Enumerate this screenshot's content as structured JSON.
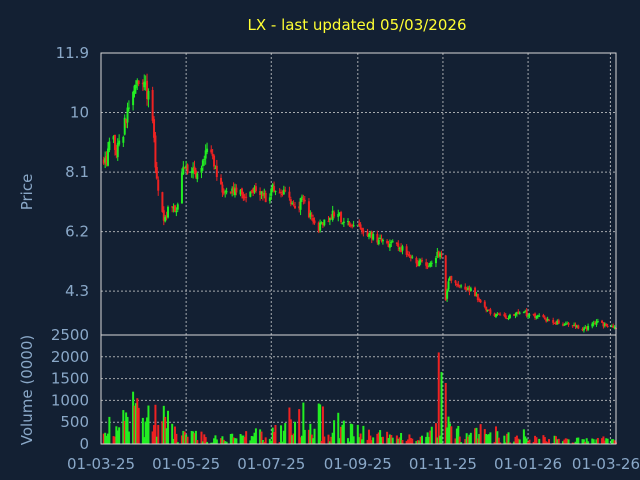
{
  "chart_data": {
    "type": "candlestick",
    "title": "LX - last updated 05/03/2026",
    "colors": {
      "background": "#132033",
      "up": "#22ee22",
      "down": "#ee2222",
      "grid": "#d8d8d8",
      "axis_text": "#8aa8c8",
      "title": "#ffff33"
    },
    "grid": true,
    "price_panel": {
      "ylabel": "Price",
      "ylim": [
        2.9,
        11.9
      ],
      "tick_labels": [
        "11.9",
        "10",
        "8.1",
        "6.2",
        "4.3"
      ],
      "tick_values": [
        11.9,
        10,
        8.1,
        6.2,
        4.3
      ]
    },
    "volume_panel": {
      "ylabel": "Volume (0000)",
      "ylim": [
        0,
        2500
      ],
      "tick_labels": [
        "2500",
        "2000",
        "1500",
        "1000",
        "500",
        "0"
      ],
      "tick_values": [
        2500,
        2000,
        1500,
        1000,
        500,
        0
      ]
    },
    "x_tick_labels": [
      "01-03-25",
      "01-05-25",
      "01-07-25",
      "01-09-25",
      "01-11-25",
      "01-01-26",
      "01-03-26"
    ],
    "x_tick_dates": [
      "2025-03-01",
      "2025-05-01",
      "2025-07-01",
      "2025-09-01",
      "2025-11-01",
      "2026-01-01",
      "2026-03-01"
    ],
    "x_range": [
      "2025-03-01",
      "2026-03-05"
    ],
    "price_path": [
      [
        "2025-03-01",
        8.4
      ],
      [
        "2025-03-05",
        8.5
      ],
      [
        "2025-03-08",
        9.3
      ],
      [
        "2025-03-12",
        8.8
      ],
      [
        "2025-03-16",
        9.2
      ],
      [
        "2025-03-20",
        10.1
      ],
      [
        "2025-03-24",
        10.5
      ],
      [
        "2025-03-28",
        11.1
      ],
      [
        "2025-04-02",
        10.8
      ],
      [
        "2025-04-06",
        10.2
      ],
      [
        "2025-04-09",
        8.4
      ],
      [
        "2025-04-12",
        7.2
      ],
      [
        "2025-04-15",
        6.6
      ],
      [
        "2025-04-19",
        7.0
      ],
      [
        "2025-04-24",
        6.8
      ],
      [
        "2025-04-28",
        8.1
      ],
      [
        "2025-05-03",
        8.2
      ],
      [
        "2025-05-08",
        8.0
      ],
      [
        "2025-05-14",
        8.5
      ],
      [
        "2025-05-18",
        8.9
      ],
      [
        "2025-05-22",
        8.2
      ],
      [
        "2025-05-27",
        7.6
      ],
      [
        "2025-06-02",
        7.4
      ],
      [
        "2025-06-08",
        7.5
      ],
      [
        "2025-06-15",
        7.3
      ],
      [
        "2025-06-22",
        7.6
      ],
      [
        "2025-06-28",
        7.2
      ],
      [
        "2025-07-02",
        7.6
      ],
      [
        "2025-07-06",
        7.4
      ],
      [
        "2025-07-12",
        7.4
      ],
      [
        "2025-07-18",
        6.9
      ],
      [
        "2025-07-24",
        7.3
      ],
      [
        "2025-07-28",
        6.8
      ],
      [
        "2025-08-03",
        6.3
      ],
      [
        "2025-08-09",
        6.5
      ],
      [
        "2025-08-15",
        6.8
      ],
      [
        "2025-08-21",
        6.6
      ],
      [
        "2025-08-27",
        6.4
      ],
      [
        "2025-09-05",
        6.2
      ],
      [
        "2025-09-14",
        6.0
      ],
      [
        "2025-09-24",
        5.8
      ],
      [
        "2025-10-04",
        5.6
      ],
      [
        "2025-10-14",
        5.2
      ],
      [
        "2025-10-24",
        5.1
      ],
      [
        "2025-10-30",
        5.6
      ],
      [
        "2025-11-01",
        5.3
      ],
      [
        "2025-11-03",
        4.1
      ],
      [
        "2025-11-05",
        4.7
      ],
      [
        "2025-11-15",
        4.4
      ],
      [
        "2025-11-22",
        4.3
      ],
      [
        "2025-11-26",
        4.1
      ],
      [
        "2025-12-01",
        3.8
      ],
      [
        "2025-12-08",
        3.5
      ],
      [
        "2025-12-18",
        3.5
      ],
      [
        "2025-12-28",
        3.6
      ],
      [
        "2026-01-08",
        3.5
      ],
      [
        "2026-01-20",
        3.3
      ],
      [
        "2026-02-01",
        3.2
      ],
      [
        "2026-02-10",
        3.1
      ],
      [
        "2026-02-20",
        3.3
      ],
      [
        "2026-03-05",
        3.1
      ]
    ],
    "volume_path": [
      [
        "2025-03-01",
        250
      ],
      [
        "2025-03-25",
        700
      ],
      [
        "2025-04-10",
        500
      ],
      [
        "2025-05-01",
        200
      ],
      [
        "2025-06-01",
        180
      ],
      [
        "2025-07-01",
        250
      ],
      [
        "2025-07-25",
        450
      ],
      [
        "2025-08-15",
        350
      ],
      [
        "2025-09-15",
        220
      ],
      [
        "2025-10-15",
        170
      ],
      [
        "2025-10-31",
        350
      ],
      [
        "2025-11-15",
        260
      ],
      [
        "2025-12-15",
        170
      ],
      [
        "2026-01-15",
        120
      ],
      [
        "2026-02-15",
        90
      ],
      [
        "2026-03-05",
        80
      ]
    ],
    "volume_spikes": [
      [
        "2025-03-24",
        1200
      ],
      [
        "2025-03-27",
        1050
      ],
      [
        "2025-04-09",
        900
      ],
      [
        "2025-04-13",
        1000
      ],
      [
        "2025-07-21",
        800
      ],
      [
        "2025-07-24",
        950
      ],
      [
        "2025-10-29",
        2100
      ],
      [
        "2025-10-31",
        1650
      ],
      [
        "2025-11-03",
        1400
      ],
      [
        "2025-11-01",
        900
      ]
    ]
  }
}
